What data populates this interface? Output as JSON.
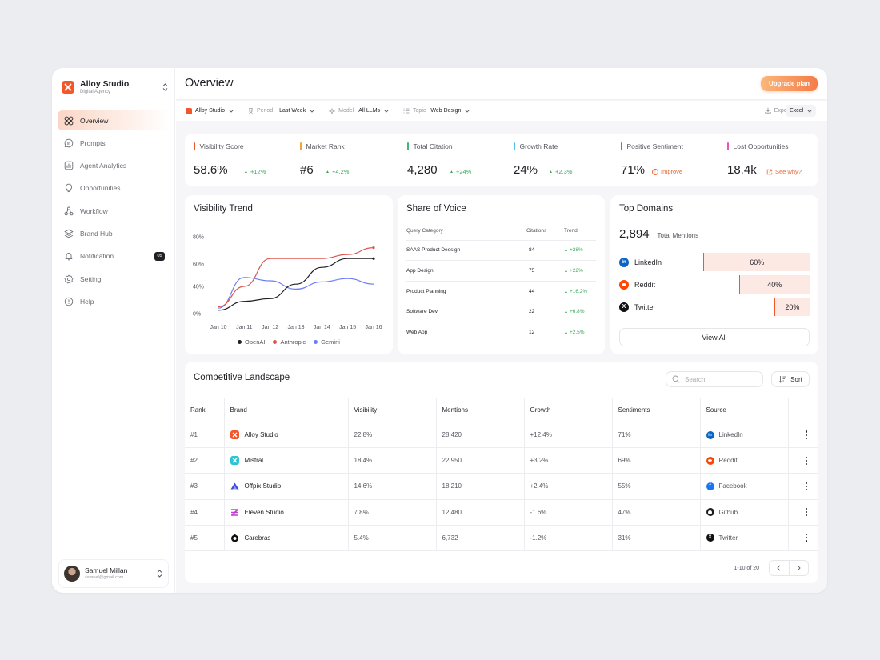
{
  "brand": {
    "name": "Alloy Studio",
    "subtitle": "Digital Agency"
  },
  "nav": [
    {
      "label": "Overview",
      "icon": "grid-icon",
      "active": true
    },
    {
      "label": "Prompts",
      "icon": "chat-icon"
    },
    {
      "label": "Agent Analytics",
      "icon": "analytics-icon"
    },
    {
      "label": "Opportunities",
      "icon": "lightbulb-icon"
    },
    {
      "label": "Workflow",
      "icon": "workflow-icon"
    },
    {
      "label": "Brand Hub",
      "icon": "layers-icon"
    },
    {
      "label": "Notification",
      "icon": "bell-icon",
      "badge": "05"
    },
    {
      "label": "Setting",
      "icon": "gear-icon"
    },
    {
      "label": "Help",
      "icon": "help-icon"
    }
  ],
  "user": {
    "name": "Samuel Millan",
    "email": "samuel@gmail.com"
  },
  "header": {
    "title": "Overview",
    "upgrade_label": "Upgrade plan"
  },
  "filters": {
    "brand": "Alloy Studio",
    "period_label": "Period:",
    "period_value": "Last Week",
    "model_label": "Model",
    "model_value": "All LLMs",
    "topic_label": "Topic",
    "topic_value": "Web Design",
    "export_label": "Export",
    "format_value": "Excel"
  },
  "stats": [
    {
      "label": "Visibility Score",
      "value": "58.6%",
      "delta": "+12%",
      "color": "#f2562b",
      "type": "up"
    },
    {
      "label": "Market Rank",
      "value": "#6",
      "delta": "+4.2%",
      "color": "#f0a52e",
      "type": "up"
    },
    {
      "label": "Total Citation",
      "value": "4,280",
      "delta": "+24%",
      "color": "#3db96b",
      "type": "up"
    },
    {
      "label": "Growth Rate",
      "value": "24%",
      "delta": "+2.3%",
      "color": "#4fc3e0",
      "type": "up"
    },
    {
      "label": "Positive Sentiment",
      "value": "71%",
      "delta": "Improve",
      "color": "#8b5cf6",
      "type": "warn"
    },
    {
      "label": "Lost Opportunities",
      "value": "18.4k",
      "delta": "See why?",
      "color": "#e855b5",
      "type": "link"
    }
  ],
  "trend": {
    "title": "Visibility Trend"
  },
  "chart_data": {
    "type": "line",
    "title": "Visibility Trend",
    "x": [
      "Jan 10",
      "Jan 11",
      "Jan 12",
      "Jan 13",
      "Jan 14",
      "Jan 15",
      "Jan 16"
    ],
    "y_ticks": [
      "0%",
      "40%",
      "60%",
      "80%"
    ],
    "series": [
      {
        "name": "OpenAI",
        "color": "#1f1f24",
        "values": [
          5,
          18,
          22,
          42,
          57,
          64,
          64
        ]
      },
      {
        "name": "Anthropic",
        "color": "#e0554b",
        "values": [
          10,
          40,
          64,
          64,
          64,
          67,
          72
        ]
      },
      {
        "name": "Gemini",
        "color": "#6b7cf4",
        "values": [
          8,
          48,
          45,
          36,
          44,
          47,
          42
        ]
      }
    ]
  },
  "sov": {
    "title": "Share of Voice",
    "headers": [
      "Query Category",
      "Citations",
      "Trend"
    ],
    "rows": [
      [
        "SAAS Product Deesign",
        "84",
        "+28%"
      ],
      [
        "App Design",
        "75",
        "+22%"
      ],
      [
        "Product Planning",
        "44",
        "+16.2%"
      ],
      [
        "Software Dev",
        "22",
        "+6.8%"
      ],
      [
        "Web App",
        "12",
        "+2.5%"
      ]
    ]
  },
  "domains": {
    "title": "Top Domains",
    "total": "2,894",
    "total_label": "Total Mentions",
    "items": [
      {
        "name": "LinkedIn",
        "pct": "60%",
        "share": 0.6,
        "icon": "linkedin-icon"
      },
      {
        "name": "Reddit",
        "pct": "40%",
        "share": 0.4,
        "icon": "reddit-icon"
      },
      {
        "name": "Twitter",
        "pct": "20%",
        "share": 0.2,
        "icon": "x-icon"
      }
    ],
    "view_all": "View All"
  },
  "competitive": {
    "title": "Competitive Landscape",
    "search_placeholder": "Search",
    "sort_label": "Sort",
    "headers": [
      "Rank",
      "Brand",
      "Visibility",
      "Mentions",
      "Growth",
      "Sentiments",
      "Source"
    ],
    "rows": [
      {
        "rank": "#1",
        "brand": "Alloy Studio",
        "visibility": "22.8%",
        "mentions": "28,420",
        "growth": "+12.4%",
        "sentiment": "71%",
        "source": "LinkedIn"
      },
      {
        "rank": "#2",
        "brand": "Mistral",
        "visibility": "18.4%",
        "mentions": "22,950",
        "growth": "+3.2%",
        "sentiment": "69%",
        "source": "Reddit"
      },
      {
        "rank": "#3",
        "brand": "Offpix Studio",
        "visibility": "14.6%",
        "mentions": "18,210",
        "growth": "+2.4%",
        "sentiment": "55%",
        "source": "Facebook"
      },
      {
        "rank": "#4",
        "brand": "Eleven Studio",
        "visibility": "7.8%",
        "mentions": "12,480",
        "growth": "-1.6%",
        "sentiment": "47%",
        "source": "Github"
      },
      {
        "rank": "#5",
        "brand": "Carebras",
        "visibility": "5.4%",
        "mentions": "6,732",
        "growth": "-1.2%",
        "sentiment": "31%",
        "source": "Twitter"
      }
    ],
    "pagination": "1-10 of 20"
  }
}
